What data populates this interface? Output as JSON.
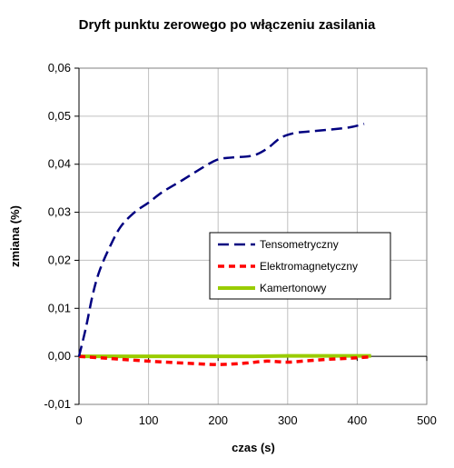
{
  "chart_data": {
    "type": "line",
    "title": "Dryft punktu zerowego po włączeniu zasilania",
    "xlabel": "czas (s)",
    "ylabel": "zmiana (%)",
    "xlim": [
      0,
      500
    ],
    "ylim": [
      -0.01,
      0.06
    ],
    "x_ticks": [
      0,
      100,
      200,
      300,
      400,
      500
    ],
    "y_ticks": [
      -0.01,
      0.0,
      0.01,
      0.02,
      0.03,
      0.04,
      0.05,
      0.06
    ],
    "x_tick_labels": [
      "0",
      "100",
      "200",
      "300",
      "400",
      "500"
    ],
    "y_tick_labels": [
      "-0,01",
      "0,00",
      "0,01",
      "0,02",
      "0,03",
      "0,04",
      "0,05",
      "0,06"
    ],
    "grid": true,
    "legend_position": "center-right",
    "series": [
      {
        "name": "Tensometryczny",
        "color": "#000080",
        "dash": "long-dash",
        "x": [
          0,
          10,
          20,
          30,
          45,
          60,
          80,
          100,
          120,
          150,
          180,
          200,
          220,
          250,
          270,
          290,
          310,
          330,
          360,
          390,
          410
        ],
        "y": [
          0.0,
          0.006,
          0.013,
          0.018,
          0.023,
          0.027,
          0.03,
          0.032,
          0.0342,
          0.0368,
          0.0395,
          0.041,
          0.0414,
          0.0418,
          0.0432,
          0.0455,
          0.0465,
          0.0468,
          0.0472,
          0.0477,
          0.0484
        ]
      },
      {
        "name": "Elektromagnetyczny",
        "color": "#ff0000",
        "dash": "dash",
        "x": [
          0,
          20,
          50,
          100,
          150,
          200,
          240,
          270,
          300,
          330,
          360,
          400,
          420
        ],
        "y": [
          0.0,
          -0.0002,
          -0.0005,
          -0.001,
          -0.0014,
          -0.0017,
          -0.0014,
          -0.001,
          -0.0012,
          -0.0009,
          -0.0006,
          -0.0003,
          -0.0001
        ]
      },
      {
        "name": "Kamertonowy",
        "color": "#99cc00",
        "dash": "solid",
        "x": [
          0,
          50,
          100,
          150,
          200,
          250,
          300,
          350,
          400,
          420
        ],
        "y": [
          0.0,
          0.0,
          0.0,
          0.0,
          0.0,
          0.0,
          0.0001,
          0.0001,
          0.0001,
          0.0001
        ]
      }
    ]
  }
}
